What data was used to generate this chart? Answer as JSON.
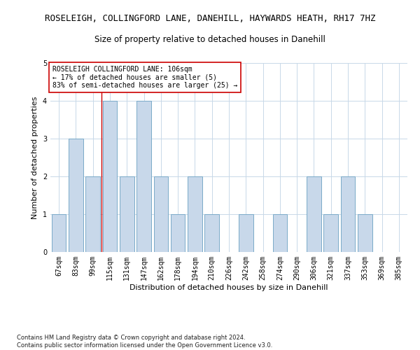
{
  "title": "ROSELEIGH, COLLINGFORD LANE, DANEHILL, HAYWARDS HEATH, RH17 7HZ",
  "subtitle": "Size of property relative to detached houses in Danehill",
  "xlabel": "Distribution of detached houses by size in Danehill",
  "ylabel": "Number of detached properties",
  "categories": [
    "67sqm",
    "83sqm",
    "99sqm",
    "115sqm",
    "131sqm",
    "147sqm",
    "162sqm",
    "178sqm",
    "194sqm",
    "210sqm",
    "226sqm",
    "242sqm",
    "258sqm",
    "274sqm",
    "290sqm",
    "306sqm",
    "321sqm",
    "337sqm",
    "353sqm",
    "369sqm",
    "385sqm"
  ],
  "values": [
    1,
    3,
    2,
    4,
    2,
    4,
    2,
    1,
    2,
    1,
    0,
    1,
    0,
    1,
    0,
    2,
    1,
    2,
    1,
    0,
    0
  ],
  "bar_color": "#c8d8ea",
  "bar_edge_color": "#7aaac8",
  "property_line_x": 2.5,
  "property_line_color": "#cc0000",
  "annotation_text": "ROSELEIGH COLLINGFORD LANE: 106sqm\n← 17% of detached houses are smaller (5)\n83% of semi-detached houses are larger (25) →",
  "annotation_box_color": "#ffffff",
  "annotation_box_edge_color": "#cc0000",
  "ylim": [
    0,
    5
  ],
  "yticks": [
    0,
    1,
    2,
    3,
    4,
    5
  ],
  "footnote": "Contains HM Land Registry data © Crown copyright and database right 2024.\nContains public sector information licensed under the Open Government Licence v3.0.",
  "title_fontsize": 9,
  "subtitle_fontsize": 8.5,
  "xlabel_fontsize": 8,
  "ylabel_fontsize": 8,
  "tick_fontsize": 7,
  "annotation_fontsize": 7,
  "footnote_fontsize": 6,
  "background_color": "#ffffff",
  "grid_color": "#c8d8e8",
  "fig_width": 6.0,
  "fig_height": 5.0,
  "dpi": 100
}
